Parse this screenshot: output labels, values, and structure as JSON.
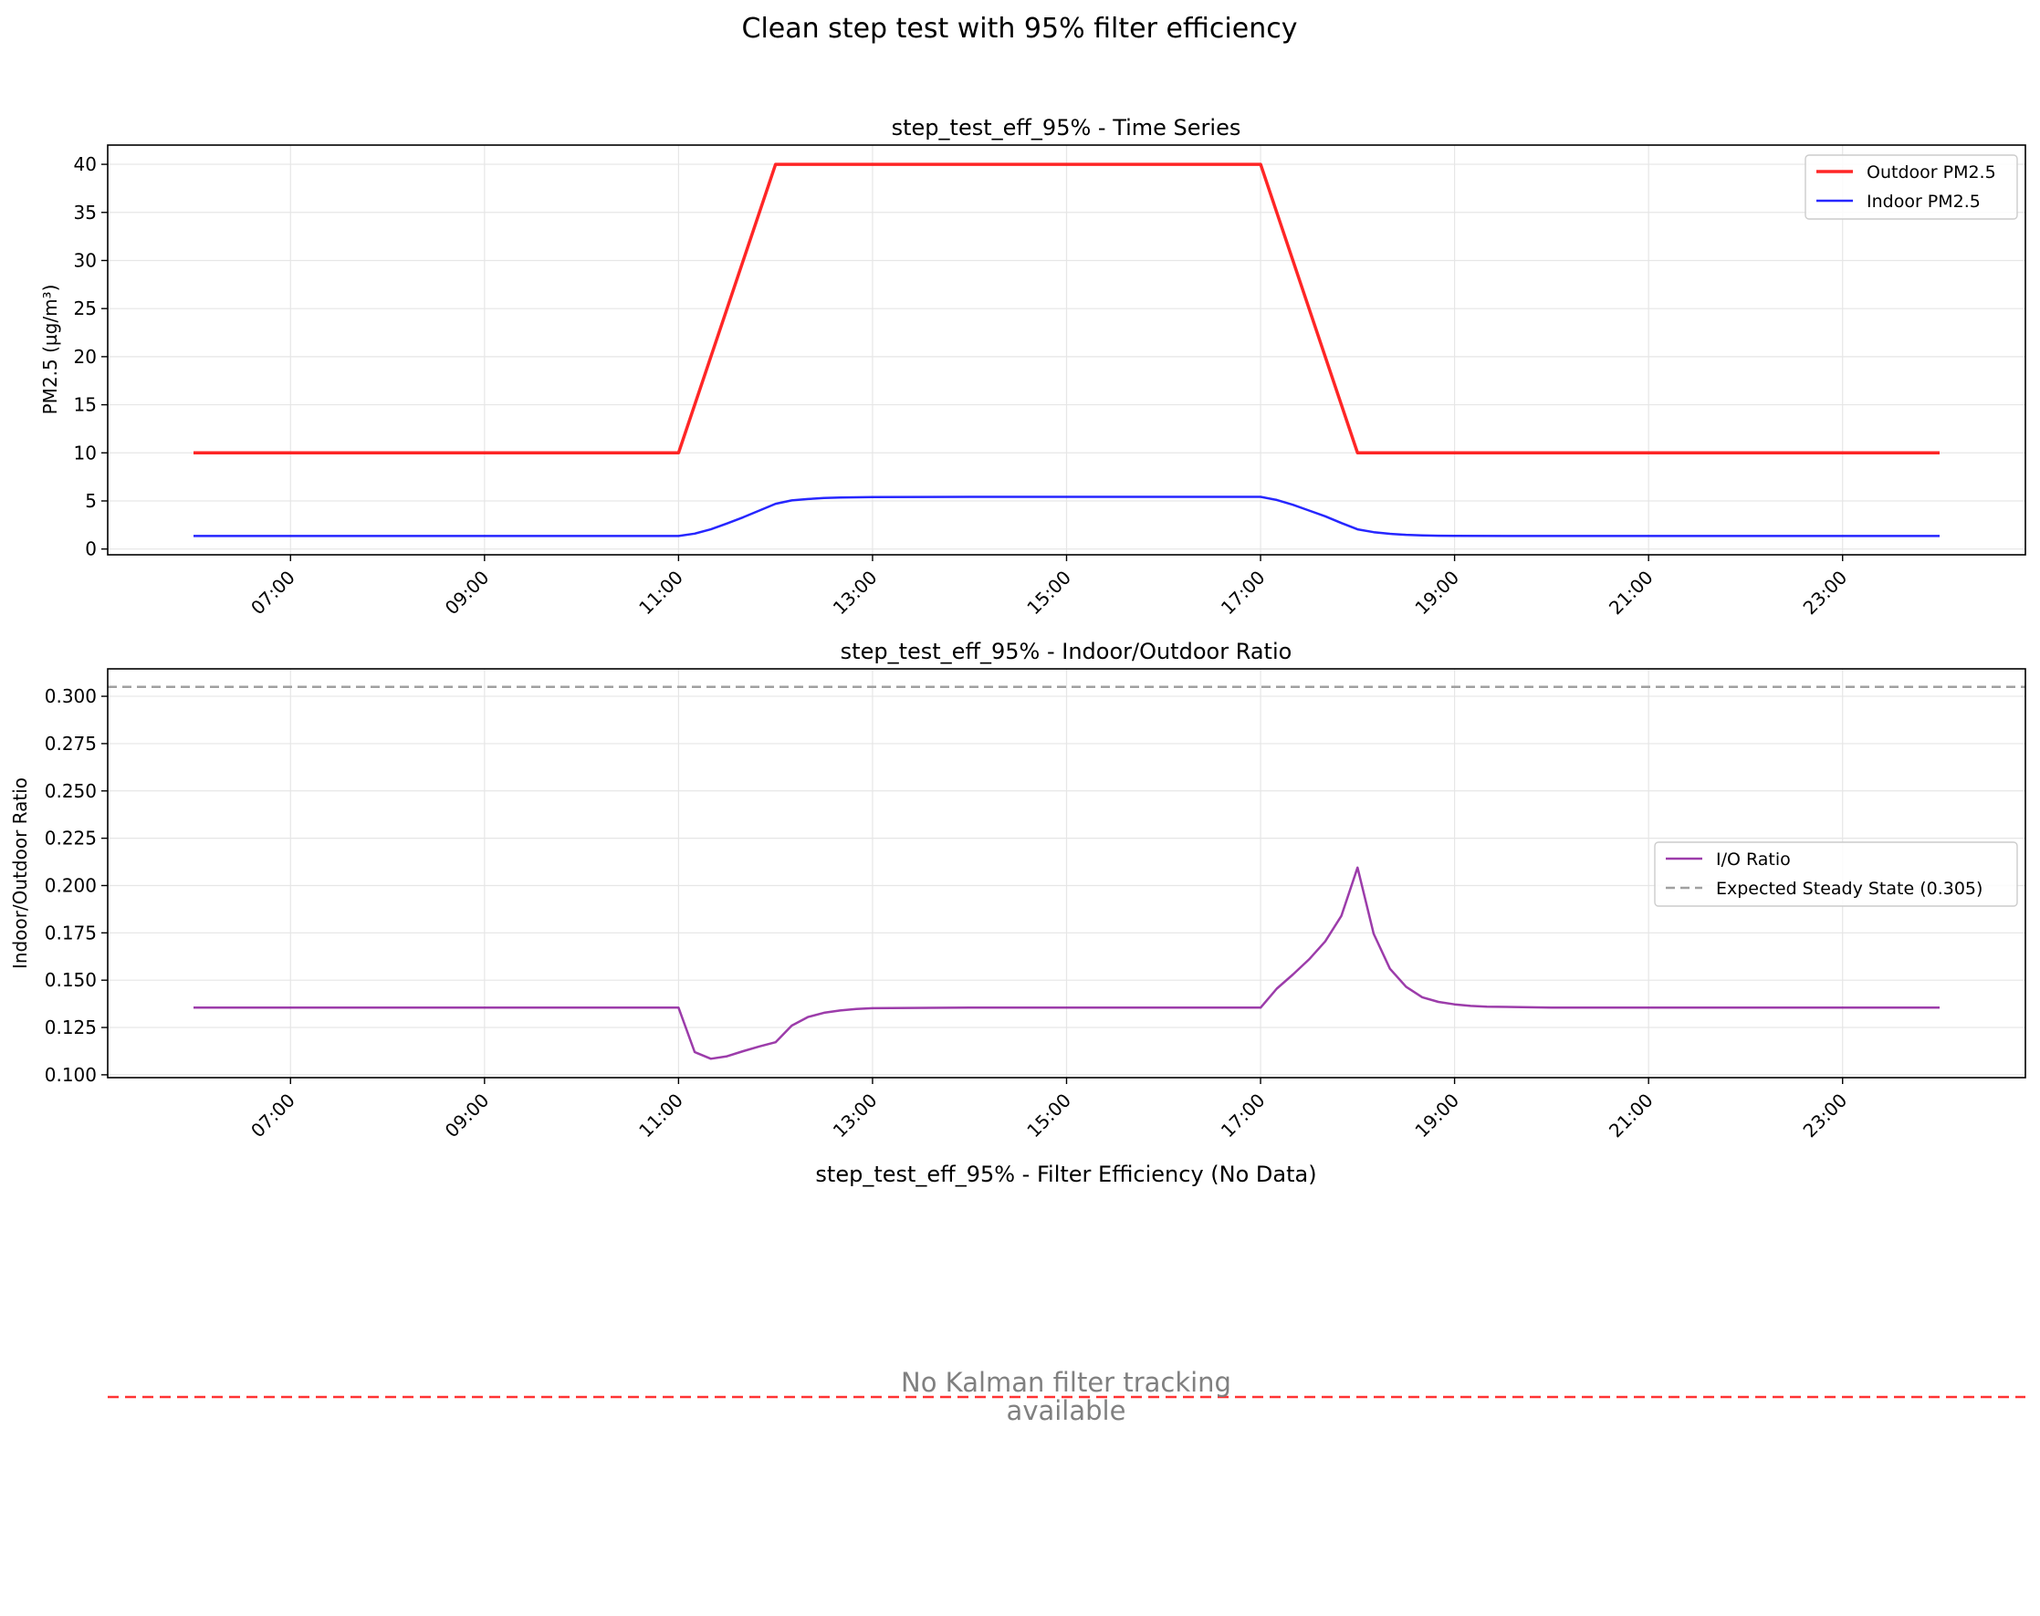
{
  "figure": {
    "title": "Clean step test with 95% filter efficiency"
  },
  "chart_data": [
    {
      "type": "line",
      "title": "step_test_eff_95% - Time Series",
      "xlabel": "",
      "ylabel": "PM2.5 (µg/m³)",
      "xlim": [
        "06:00",
        "24:00"
      ],
      "ylim": [
        -0.6,
        42
      ],
      "yticks": [
        0,
        5,
        10,
        15,
        20,
        25,
        30,
        35,
        40
      ],
      "xticks": [
        "07:00",
        "09:00",
        "11:00",
        "13:00",
        "15:00",
        "17:00",
        "19:00",
        "21:00",
        "23:00"
      ],
      "grid": true,
      "legend": "top-right",
      "series": [
        {
          "name": "Outdoor PM2.5",
          "color": "#ff0000",
          "x": [
            "06:00",
            "11:00",
            "12:00",
            "17:00",
            "18:00",
            "24:00"
          ],
          "y": [
            10,
            10,
            40,
            40,
            10,
            10
          ]
        },
        {
          "name": "Indoor PM2.5",
          "color": "#0000ff",
          "x": [
            "06:00",
            "11:00",
            "11:10",
            "11:20",
            "11:30",
            "11:40",
            "11:50",
            "12:00",
            "12:10",
            "12:20",
            "12:30",
            "12:40",
            "12:50",
            "13:00",
            "14:00",
            "17:00",
            "17:10",
            "17:20",
            "17:30",
            "17:40",
            "17:50",
            "18:00",
            "18:10",
            "18:20",
            "18:30",
            "18:40",
            "18:50",
            "19:00",
            "20:00",
            "24:00"
          ],
          "y": [
            1.35,
            1.35,
            1.6,
            2.05,
            2.65,
            3.3,
            4.0,
            4.7,
            5.05,
            5.2,
            5.3,
            5.35,
            5.38,
            5.4,
            5.42,
            5.42,
            5.1,
            4.6,
            4.0,
            3.4,
            2.7,
            2.05,
            1.75,
            1.58,
            1.48,
            1.42,
            1.38,
            1.36,
            1.35,
            1.35
          ]
        }
      ]
    },
    {
      "type": "line",
      "title": "step_test_eff_95% - Indoor/Outdoor Ratio",
      "xlabel": "",
      "ylabel": "Indoor/Outdoor Ratio",
      "xlim": [
        "06:00",
        "24:00"
      ],
      "ylim": [
        0.0985,
        0.3145
      ],
      "yticks": [
        0.1,
        0.125,
        0.15,
        0.175,
        0.2,
        0.225,
        0.25,
        0.275,
        0.3
      ],
      "ytick_labels": [
        "0.100",
        "0.125",
        "0.150",
        "0.175",
        "0.200",
        "0.225",
        "0.250",
        "0.275",
        "0.300"
      ],
      "xticks": [
        "07:00",
        "09:00",
        "11:00",
        "13:00",
        "15:00",
        "17:00",
        "19:00",
        "21:00",
        "23:00"
      ],
      "grid": true,
      "legend": "center-right",
      "series": [
        {
          "name": "I/O Ratio",
          "color": "#8b1a9b",
          "x": [
            "06:00",
            "11:00",
            "11:10",
            "11:20",
            "11:30",
            "11:40",
            "11:50",
            "12:00",
            "12:10",
            "12:20",
            "12:30",
            "12:40",
            "12:50",
            "13:00",
            "14:00",
            "17:00",
            "17:10",
            "17:20",
            "17:30",
            "17:40",
            "17:50",
            "18:00",
            "18:10",
            "18:20",
            "18:30",
            "18:40",
            "18:50",
            "19:00",
            "19:10",
            "19:20",
            "20:00",
            "24:00"
          ],
          "y": [
            0.1355,
            0.1355,
            0.112,
            0.1085,
            0.1098,
            0.1125,
            0.115,
            0.1172,
            0.126,
            0.1305,
            0.1328,
            0.134,
            0.1348,
            0.1352,
            0.1355,
            0.1355,
            0.1455,
            0.153,
            0.161,
            0.1705,
            0.184,
            0.2095,
            0.1745,
            0.156,
            0.1465,
            0.141,
            0.1385,
            0.1372,
            0.1364,
            0.136,
            0.1355,
            0.1355
          ]
        }
      ],
      "reference_line": {
        "name": "Expected Steady State (0.305)",
        "value": 0.305,
        "color": "#a0a0a0",
        "style": "dashed"
      }
    },
    {
      "type": "line",
      "title": "step_test_eff_95% - Filter Efficiency (No Data)",
      "message_line1": "No Kalman filter tracking",
      "message_line2": "available",
      "reference_line": {
        "color": "#ff0000",
        "style": "dashed"
      },
      "axes_visible": false
    }
  ]
}
